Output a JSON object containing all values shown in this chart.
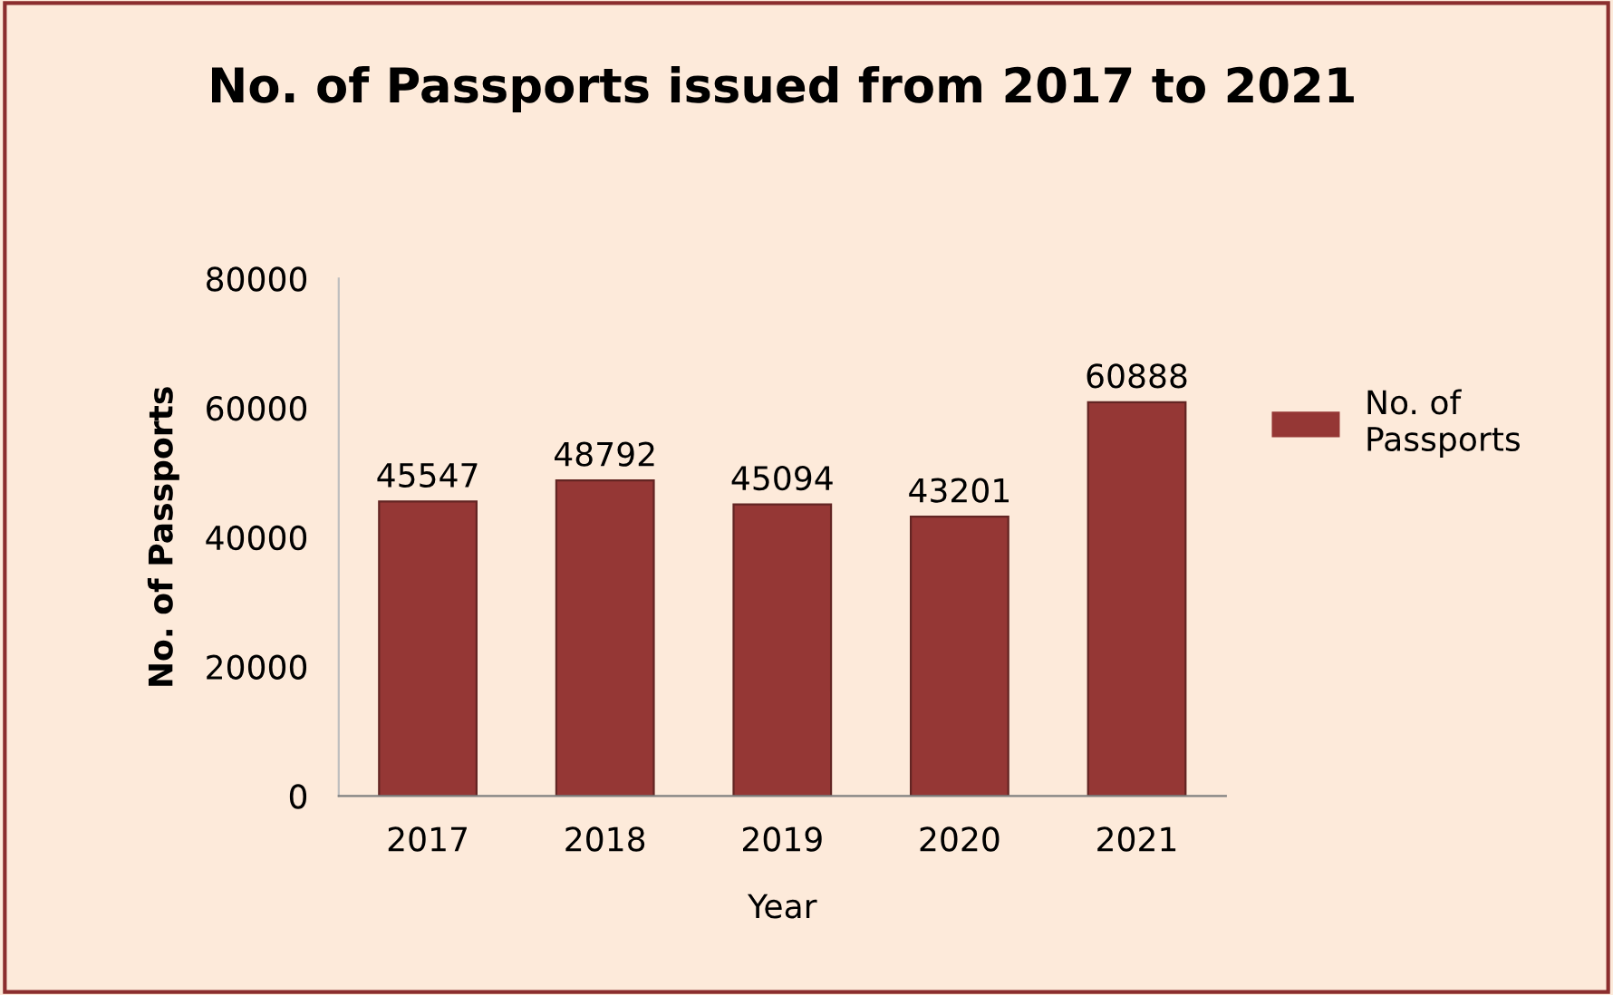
{
  "chart_data": {
    "type": "bar",
    "title": "No. of Passports issued from 2017 to 2021",
    "xlabel": "Year",
    "ylabel": "No. of Passports",
    "categories": [
      "2017",
      "2018",
      "2019",
      "2020",
      "2021"
    ],
    "series": [
      {
        "name": "No. of Passports",
        "color": "#953735",
        "values": [
          45547,
          48792,
          45094,
          43201,
          60888
        ]
      }
    ],
    "ylim": [
      0,
      80000
    ],
    "yticks": [
      0,
      20000,
      40000,
      60000,
      80000
    ],
    "grid": false,
    "legend": "right",
    "data_labels": true
  }
}
